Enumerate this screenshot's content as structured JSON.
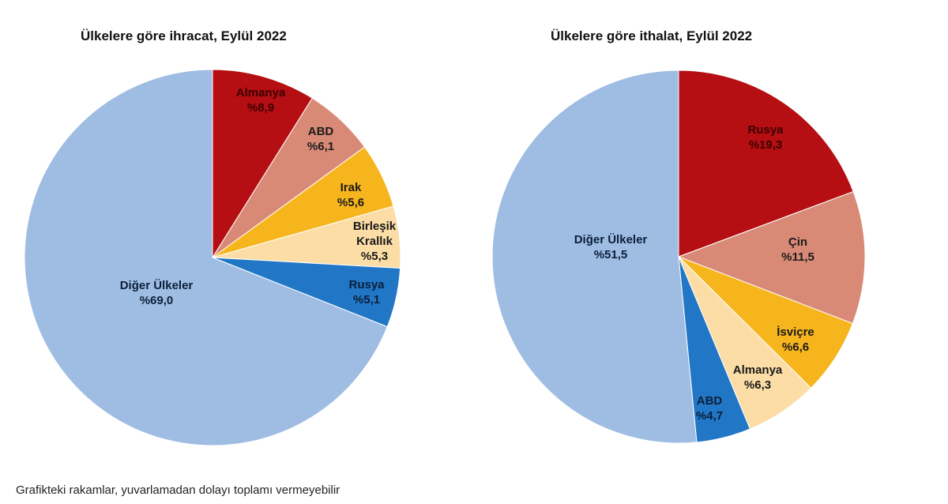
{
  "footnote": "Grafikteki rakamlar, yuvarlamadan dolayı toplamı vermeyebilir",
  "chart_data": [
    {
      "type": "pie",
      "title": "Ülkelere göre ihracat, Eylül 2022",
      "start_angle_deg": 0,
      "direction": "clockwise",
      "slices": [
        {
          "label": "Almanya",
          "value": 8.9,
          "value_label": "%8,9",
          "color": "#B50F13",
          "text_color": "#3a0000"
        },
        {
          "label": "ABD",
          "value": 6.1,
          "value_label": "%6,1",
          "color": "#D98A77",
          "text_color": "#1a1a1a"
        },
        {
          "label": "Irak",
          "value": 5.6,
          "value_label": "%5,6",
          "color": "#F7B51D",
          "text_color": "#1a1a1a"
        },
        {
          "label": "Birleşik Krallık",
          "value": 5.3,
          "value_label": "%5,3",
          "color": "#FBDDA5",
          "text_color": "#1a1a1a"
        },
        {
          "label": "Rusya",
          "value": 5.1,
          "value_label": "%5,1",
          "color": "#2177C6",
          "text_color": "#0b1f3a"
        },
        {
          "label": "Diğer Ülkeler",
          "value": 69.0,
          "value_label": "%69,0",
          "color": "#9FBDE3",
          "text_color": "#0b1f3a"
        }
      ]
    },
    {
      "type": "pie",
      "title": "Ülkelere göre ithalat, Eylül 2022",
      "start_angle_deg": 0,
      "direction": "clockwise",
      "slices": [
        {
          "label": "Rusya",
          "value": 19.3,
          "value_label": "%19,3",
          "color": "#B50F13",
          "text_color": "#3a0000"
        },
        {
          "label": "Çin",
          "value": 11.5,
          "value_label": "%11,5",
          "color": "#D98A77",
          "text_color": "#1a1a1a"
        },
        {
          "label": "İsviçre",
          "value": 6.6,
          "value_label": "%6,6",
          "color": "#F7B51D",
          "text_color": "#1a1a1a"
        },
        {
          "label": "Almanya",
          "value": 6.3,
          "value_label": "%6,3",
          "color": "#FBDDA5",
          "text_color": "#1a1a1a"
        },
        {
          "label": "ABD",
          "value": 4.7,
          "value_label": "%4,7",
          "color": "#2177C6",
          "text_color": "#0b1f3a"
        },
        {
          "label": "Diğer Ülkeler",
          "value": 51.5,
          "value_label": "%51,5",
          "color": "#9FBDE3",
          "text_color": "#0b1f3a"
        }
      ]
    }
  ]
}
